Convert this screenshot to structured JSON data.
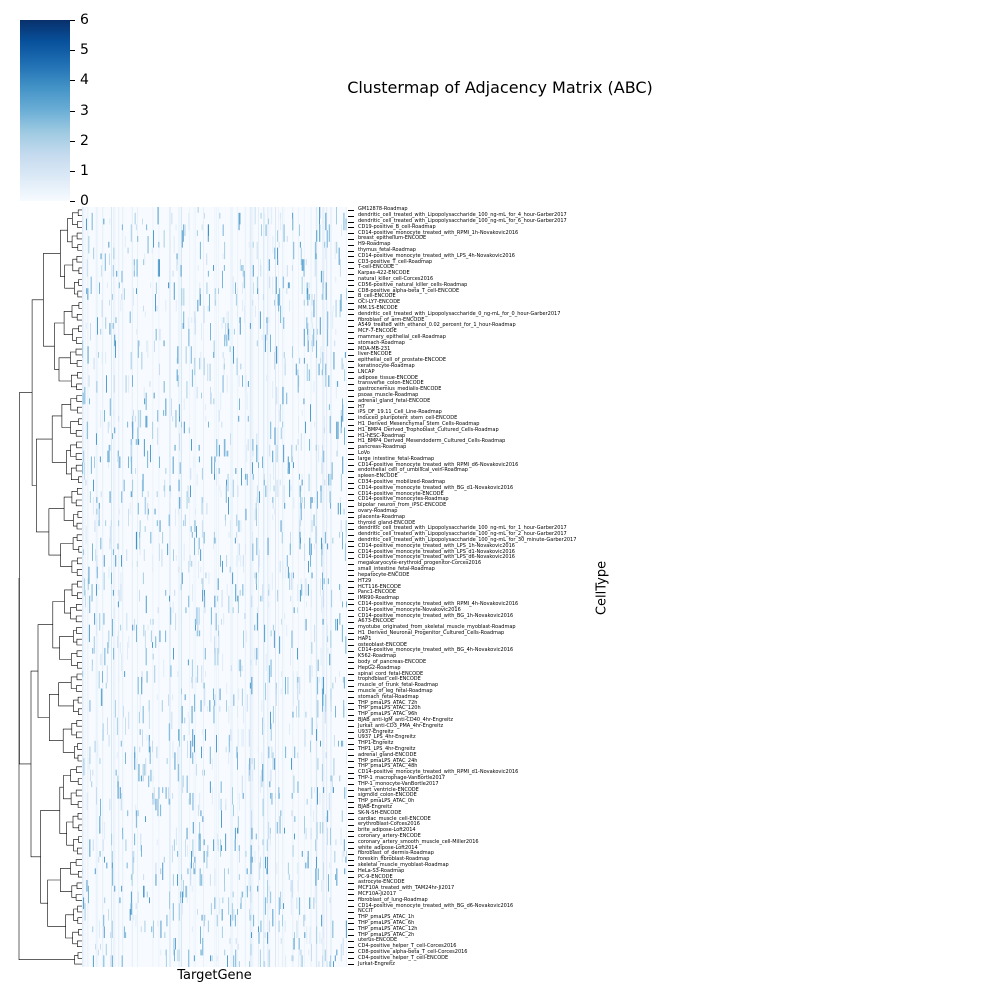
{
  "colors": {
    "low": "#f7fbff",
    "mid": "#9ecae1",
    "high": "#08306b",
    "dendro": "#000000"
  },
  "chart_data": {
    "type": "heatmap",
    "title": "Clustermap of Adjacency Matrix (ABC)",
    "xlabel": "TargetGene",
    "ylabel": "CellType",
    "colorbar": {
      "range": [
        0,
        6
      ],
      "ticks": [
        "0",
        "1",
        "2",
        "3",
        "4",
        "5",
        "6"
      ],
      "colormap": "Blues"
    },
    "rows": [
      "GM12878-Roadmap",
      "dendritic_cell_treated_with_Lipopolysaccharide_100_ng-mL_for_4_hour-Garber2017",
      "dendritic_cell_treated_with_Lipopolysaccharide_100_ng-mL_for_6_hour-Garber2017",
      "CD19-positive_B_cell-Roadmap",
      "CD14-positive_monocyte_treated_with_RPMI_1h-Novakovic2016",
      "breast_epithelium-ENCODE",
      "H9-Roadmap",
      "thymus_fetal-Roadmap",
      "CD14-positive_monocyte_treated_with_LPS_4h-Novakovic2016",
      "CD3-positive_T_cell-Roadmap",
      "T-cell-ENCODE",
      "Karpas-422-ENCODE",
      "natural_killer_cell-Corces2016",
      "CD56-positive_natural_killer_cells-Roadmap",
      "CD8-positive_alpha-beta_T_cell-ENCODE",
      "B_cell-ENCODE",
      "OCI-LY7-ENCODE",
      "MM.1S-ENCODE",
      "dendritic_cell_treated_with_Lipopolysaccharide_0_ng-mL_for_0_hour-Garber2017",
      "fibroblast_of_arm-ENCODE",
      "A549_treated_with_ethanol_0.02_percent_for_1_hour-Roadmap",
      "MCF-7-ENCODE",
      "mammary_epithelial_cell-Roadmap",
      "stomach-Roadmap",
      "MDA-MB-231",
      "liver-ENCODE",
      "epithelial_cell_of_prostate-ENCODE",
      "keratinocyte-Roadmap",
      "LNCAP",
      "adipose_tissue-ENCODE",
      "transverse_colon-ENCODE",
      "gastrocnemius_medialis-ENCODE",
      "psoas_muscle-Roadmap",
      "adrenal_gland_fetal-ENCODE",
      "H7",
      "iPS_DF_19.11_Cell_Line-Roadmap",
      "induced_pluripotent_stem_cell-ENCODE",
      "H1_Derived_Mesenchymal_Stem_Cells-Roadmap",
      "H1_BMP4_Derived_Trophoblast_Cultured_Cells-Roadmap",
      "H1-hESC-Roadmap",
      "H1_BMP4_Derived_Mesendoderm_Cultured_Cells-Roadmap",
      "pancreas-Roadmap",
      "LoVo",
      "large_intestine_fetal-Roadmap",
      "CD14-positive_monocyte_treated_with_RPMI_d6-Novakovic2016",
      "endothelial_cell_of_umbilical_vein-Roadmap",
      "spleen-ENCODE",
      "CD34-positive_mobilized-Roadmap",
      "CD14-positive_monocyte_treated_with_BG_d1-Novakovic2016",
      "CD14-positive_monocyte-ENCODE",
      "CD14-positive_monocytes-Roadmap",
      "bipolar_neuron_from_iPSC-ENCODE",
      "ovary-Roadmap",
      "placenta-Roadmap",
      "thyroid_gland-ENCODE",
      "dendritic_cell_treated_with_Lipopolysaccharide_100_ng-mL_for_1_hour-Garber2017",
      "dendritic_cell_treated_with_Lipopolysaccharide_100_ng-mL_for_2_hour-Garber2017",
      "dendritic_cell_treated_with_Lipopolysaccharide_100_ng-mL_for_30_minute-Garber2017",
      "CD14-positive_monocyte_treated_with_LPS_1h-Novakovic2016",
      "CD14-positive_monocyte_treated_with_LPS_d1-Novakovic2016",
      "CD14-positive_monocyte_treated_with_LPS_d6-Novakovic2016",
      "megakaryocyte-erythroid_progenitor-Corces2016",
      "small_intestine_fetal-Roadmap",
      "hepatocyte-ENCODE",
      "HT29",
      "HCT116-ENCODE",
      "Panc1-ENCODE",
      "IMR90-Roadmap",
      "CD14-positive_monocyte_treated_with_RPMI_4h-Novakovic2016",
      "CD14-positive_monocyte-Novakovic2016",
      "CD14-positive_monocyte_treated_with_BG_1h-Novakovic2016",
      "A673-ENCODE",
      "myotube_originated_from_skeletal_muscle_myoblast-Roadmap",
      "H1_Derived_Neuronal_Progenitor_Cultured_Cells-Roadmap",
      "HAP1",
      "osteoblast-ENCODE",
      "CD14-positive_monocyte_treated_with_BG_4h-Novakovic2016",
      "K562-Roadmap",
      "body_of_pancreas-ENCODE",
      "HepG2-Roadmap",
      "spinal_cord_fetal-ENCODE",
      "trophoblast_cell-ENCODE",
      "muscle_of_trunk_fetal-Roadmap",
      "muscle_of_leg_fetal-Roadmap",
      "stomach_fetal-Roadmap",
      "THP_pmaLPS_ATAC_72h",
      "THP_pmaLPS_ATAC_120h",
      "THP_pmaLPS_ATAC_96h",
      "BJAB_anti-IgM_anti-CD40_4hr-Engreitz",
      "Jurkat_anti-CD3_PMA_4hr-Engreitz",
      "U937-Engreitz",
      "U937_LPS_4hr-Engreitz",
      "THP1-Engreitz",
      "THP1_LPS_4hr-Engreitz",
      "adrenal_gland-ENCODE",
      "THP_pmaLPS_ATAC_24h",
      "THP_pmaLPS_ATAC_48h",
      "CD14-positive_monocyte_treated_with_RPMI_d1-Novakovic2016",
      "THP-1_macrophage-VanBortle2017",
      "THP-1_monocyte-VanBortle2017",
      "heart_ventricle-ENCODE",
      "sigmoid_colon-ENCODE",
      "THP_pmaLPS_ATAC_0h",
      "BJAB-Engreitz",
      "SK-N-SH-ENCODE",
      "cardiac_muscle_cell-ENCODE",
      "erythroblast-Corces2016",
      "brite_adipose-Loft2014",
      "coronary_artery-ENCODE",
      "coronary_artery_smooth_muscle_cell-Miller2016",
      "white_adipose-Loft2014",
      "fibroblast_of_dermis-Roadmap",
      "foreskin_fibroblast-Roadmap",
      "skeletal_muscle_myoblast-Roadmap",
      "HeLa-S3-Roadmap",
      "PC-9-ENCODE",
      "astrocyte-ENCODE",
      "MCF10A_treated_with_TAM24hr-Ji2017",
      "MCF10A-Ji2017",
      "fibroblast_of_lung-Roadmap",
      "CD14-positive_monocyte_treated_with_BG_d6-Novakovic2016",
      "NCCIT",
      "THP_pmaLPS_ATAC_1h",
      "THP_pmaLPS_ATAC_6h",
      "THP_pmaLPS_ATAC_12h",
      "THP_pmaLPS_ATAC_2h",
      "uterus-ENCODE",
      "CD4-positive_helper_T_cell-Corces2016",
      "CD8-positive_alpha-beta_T_cell-Corces2016",
      "CD4-positive_helper_T_cell-ENCODE",
      "Jurkat-Engreitz"
    ]
  }
}
